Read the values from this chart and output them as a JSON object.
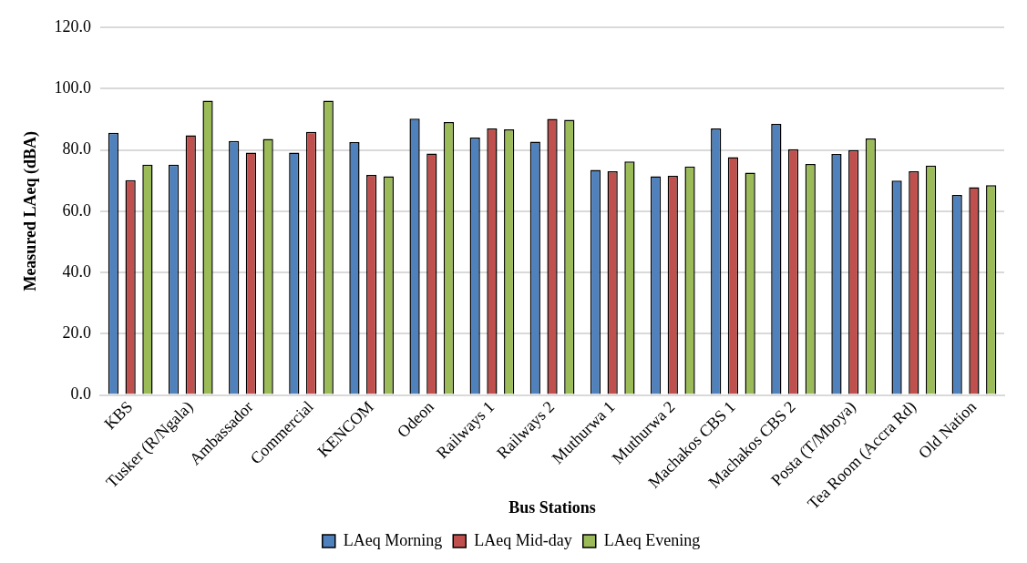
{
  "chart_data": {
    "type": "bar",
    "xlabel": "Bus Stations",
    "ylabel": "Measured LAeq (dBA)",
    "categories": [
      "KBS",
      "Tusker (R/Ngala)",
      "Ambassador",
      "Commercial",
      "KENCOM",
      "Odeon",
      "Railways 1",
      "Railways 2",
      "Muthurwa 1",
      "Muthurwa 2",
      "Machakos CBS 1",
      "Machakos CBS 2",
      "Posta (T/Mboya)",
      "Tea Room (Accra Rd)",
      "Old Nation"
    ],
    "series": [
      {
        "name": "LAeq Morning",
        "color": "#4f81bd",
        "values": [
          85.6,
          75.2,
          82.9,
          79.1,
          82.5,
          90.2,
          84.0,
          82.7,
          73.5,
          71.4,
          87.0,
          88.5,
          78.7,
          70.0,
          65.3
        ]
      },
      {
        "name": "LAeq Mid-day",
        "color": "#c0504d",
        "values": [
          70.1,
          84.8,
          79.1,
          85.9,
          71.8,
          78.8,
          87.0,
          90.1,
          73.0,
          71.5,
          77.6,
          80.2,
          79.9,
          73.0,
          67.8
        ]
      },
      {
        "name": "LAeq Evening",
        "color": "#9bbb59",
        "values": [
          75.2,
          96.1,
          83.6,
          96.1,
          71.4,
          89.1,
          86.7,
          89.8,
          76.2,
          74.6,
          72.6,
          75.4,
          83.7,
          74.9,
          68.5
        ]
      }
    ],
    "ylim": [
      0,
      120
    ],
    "yticks": [
      {
        "value": 0,
        "label": "0.0"
      },
      {
        "value": 20,
        "label": "20.0"
      },
      {
        "value": 40,
        "label": "40.0"
      },
      {
        "value": 60,
        "label": "60.0"
      },
      {
        "value": 80,
        "label": "80.0"
      },
      {
        "value": 100,
        "label": "100.0"
      },
      {
        "value": 120,
        "label": "120.0"
      }
    ],
    "grid": "y",
    "legend": "bottom"
  }
}
